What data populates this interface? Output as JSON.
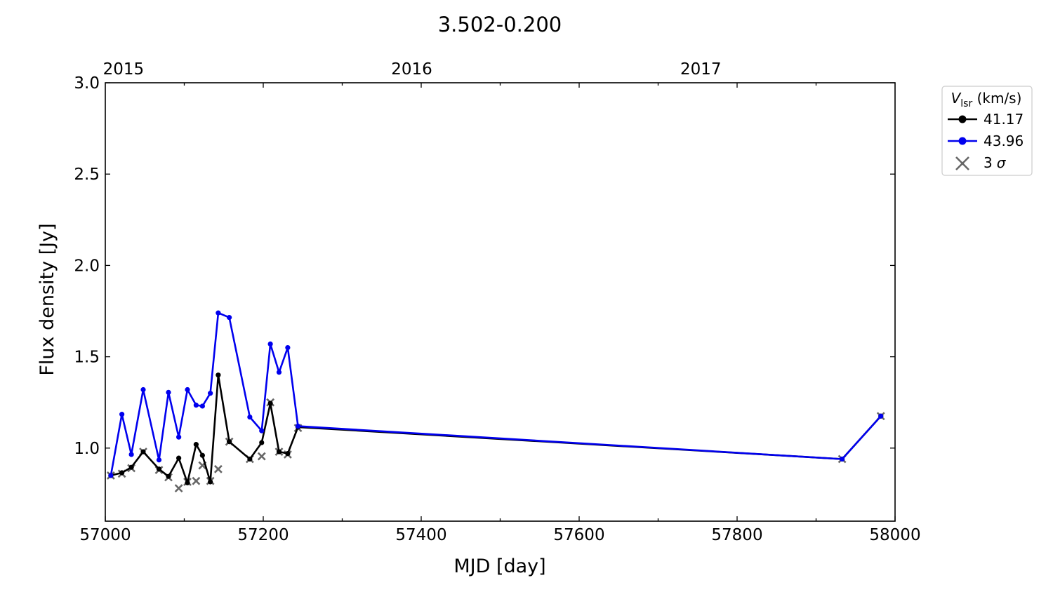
{
  "chart_data": {
    "type": "line",
    "title": "3.502-0.200",
    "xlabel": "MJD [day]",
    "ylabel": "Flux density [Jy]",
    "xlim": [
      57000,
      58000
    ],
    "ylim": [
      0.6,
      3.0
    ],
    "x_ticks": [
      57000,
      57200,
      57400,
      57600,
      57800,
      58000
    ],
    "y_ticks": [
      "1.0",
      "1.5",
      "2.0",
      "2.5",
      "3.0"
    ],
    "top_axis": {
      "labels": [
        {
          "label": "2015",
          "mjd": 57023
        },
        {
          "label": "2016",
          "mjd": 57388
        },
        {
          "label": "2017",
          "mjd": 57754
        }
      ]
    },
    "grid": false,
    "legend": {
      "position": "outside-top-right",
      "title": "V",
      "title_sub": "lsr",
      "title_unit": " (km/s)",
      "sigma_label": "3 σ"
    },
    "series": [
      {
        "name": "41.17",
        "color": "#000000",
        "x": [
          57007,
          57021,
          57033,
          57048,
          57068,
          57080,
          57093,
          57104,
          57115,
          57123,
          57133,
          57143,
          57157,
          57183,
          57198,
          57209,
          57220,
          57231,
          57244,
          57933,
          57982
        ],
        "y": [
          0.85,
          0.865,
          0.895,
          0.98,
          0.885,
          0.845,
          0.945,
          0.81,
          1.02,
          0.96,
          0.815,
          1.4,
          1.035,
          0.94,
          1.03,
          1.245,
          0.98,
          0.97,
          1.115,
          0.94,
          1.175
        ]
      },
      {
        "name": "43.96",
        "color": "#0000ee",
        "x": [
          57007,
          57021,
          57033,
          57048,
          57068,
          57080,
          57093,
          57104,
          57115,
          57123,
          57133,
          57143,
          57157,
          57183,
          57198,
          57209,
          57220,
          57231,
          57244,
          57933,
          57982
        ],
        "y": [
          0.85,
          1.185,
          0.965,
          1.32,
          0.935,
          1.305,
          1.06,
          1.32,
          1.235,
          1.23,
          1.3,
          1.74,
          1.715,
          1.17,
          1.095,
          1.57,
          1.415,
          1.55,
          1.12,
          0.94,
          1.175
        ]
      }
    ],
    "sigma3": {
      "name": "3 σ",
      "color": "#666666",
      "x": [
        57007,
        57021,
        57033,
        57048,
        57068,
        57080,
        57093,
        57104,
        57115,
        57123,
        57133,
        57143,
        57157,
        57183,
        57198,
        57209,
        57220,
        57231,
        57244,
        57933,
        57982
      ],
      "y": [
        0.85,
        0.86,
        0.89,
        0.98,
        0.88,
        0.84,
        0.78,
        0.815,
        0.82,
        0.905,
        0.82,
        0.885,
        1.035,
        0.94,
        0.955,
        1.25,
        0.98,
        0.965,
        1.11,
        0.94,
        1.175
      ]
    }
  }
}
